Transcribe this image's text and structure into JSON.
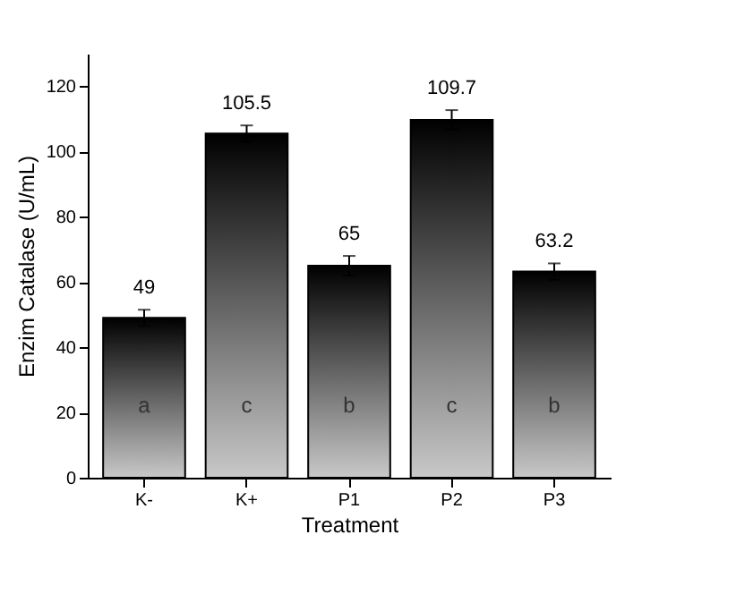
{
  "chart_data": {
    "type": "bar",
    "xlabel": "Treatment",
    "ylabel": "Enzim Catalase (U/mL)",
    "categories": [
      "K-",
      "K+",
      "P1",
      "P2",
      "P3"
    ],
    "values": [
      49,
      105.5,
      65,
      109.7,
      63.2
    ],
    "errors": [
      2.5,
      2.5,
      3,
      3,
      2.5
    ],
    "color": "#000000",
    "ylim": [
      0,
      130
    ],
    "yticks": [
      0,
      20,
      40,
      60,
      80,
      100,
      120
    ],
    "data_labels": true,
    "grid": false,
    "annotations": [
      "a",
      "c",
      "b",
      "c",
      "b"
    ]
  }
}
